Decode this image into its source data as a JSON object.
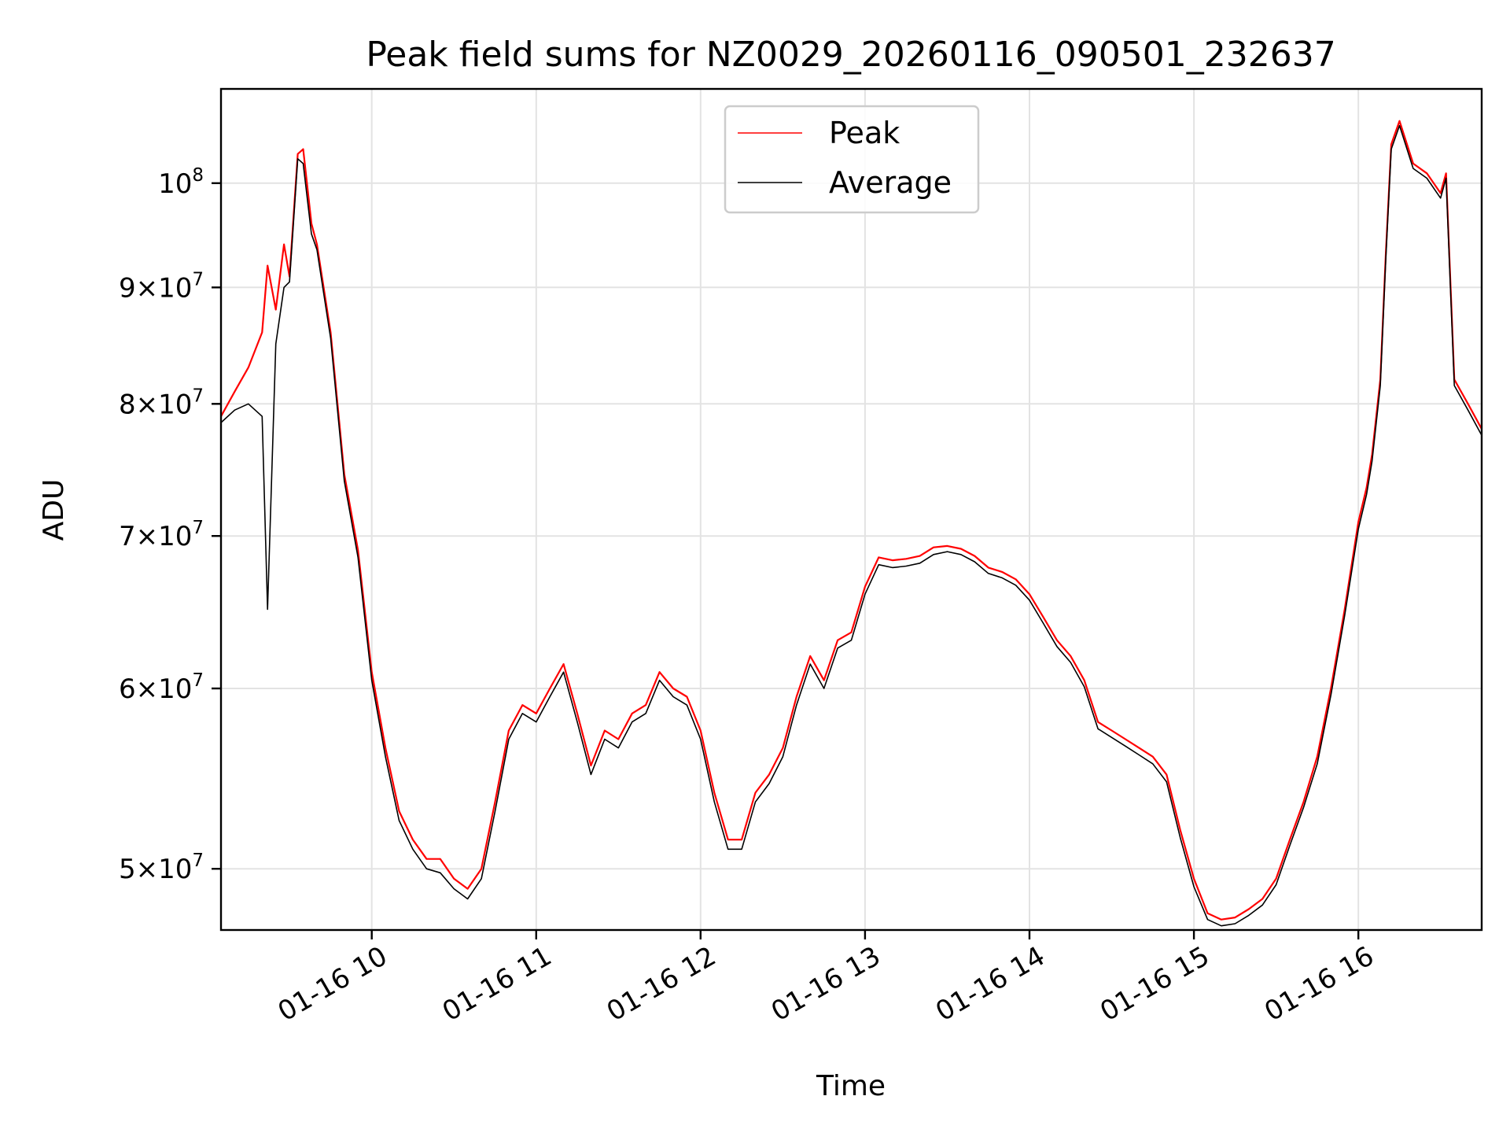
{
  "chart_data": {
    "type": "line",
    "title": "Peak field sums for NZ0029_20260116_090501_232637",
    "xlabel": "Time",
    "ylabel": "ADU",
    "x_scale": "time",
    "y_scale": "log",
    "xlim": [
      "2026-01-16 09:05",
      "2026-01-16 16:45"
    ],
    "ylim": [
      47000000,
      110000000
    ],
    "grid": true,
    "legend_position": "top-center",
    "x_ticks": [
      {
        "label": "01-16 10",
        "value": "2026-01-16 10:00"
      },
      {
        "label": "01-16 11",
        "value": "2026-01-16 11:00"
      },
      {
        "label": "01-16 12",
        "value": "2026-01-16 12:00"
      },
      {
        "label": "01-16 13",
        "value": "2026-01-16 13:00"
      },
      {
        "label": "01-16 14",
        "value": "2026-01-16 14:00"
      },
      {
        "label": "01-16 15",
        "value": "2026-01-16 15:00"
      },
      {
        "label": "01-16 16",
        "value": "2026-01-16 16:00"
      }
    ],
    "y_ticks": [
      {
        "mantissa": "5",
        "base": "10",
        "exp": "7",
        "value": 50000000
      },
      {
        "mantissa": "6",
        "base": "10",
        "exp": "7",
        "value": 60000000
      },
      {
        "mantissa": "7",
        "base": "10",
        "exp": "7",
        "value": 70000000
      },
      {
        "mantissa": "8",
        "base": "10",
        "exp": "7",
        "value": 80000000
      },
      {
        "mantissa": "9",
        "base": "10",
        "exp": "7",
        "value": 90000000
      },
      {
        "mantissa": "",
        "base": "10",
        "exp": "8",
        "value": 100000000
      }
    ],
    "series": [
      {
        "name": "Peak",
        "color": "#ff0000",
        "x": [
          "2026-01-16 09:05",
          "2026-01-16 09:10",
          "2026-01-16 09:15",
          "2026-01-16 09:20",
          "2026-01-16 09:22",
          "2026-01-16 09:25",
          "2026-01-16 09:28",
          "2026-01-16 09:30",
          "2026-01-16 09:33",
          "2026-01-16 09:35",
          "2026-01-16 09:38",
          "2026-01-16 09:40",
          "2026-01-16 09:45",
          "2026-01-16 09:50",
          "2026-01-16 09:55",
          "2026-01-16 10:00",
          "2026-01-16 10:05",
          "2026-01-16 10:10",
          "2026-01-16 10:15",
          "2026-01-16 10:20",
          "2026-01-16 10:25",
          "2026-01-16 10:30",
          "2026-01-16 10:35",
          "2026-01-16 10:40",
          "2026-01-16 10:45",
          "2026-01-16 10:50",
          "2026-01-16 10:55",
          "2026-01-16 11:00",
          "2026-01-16 11:05",
          "2026-01-16 11:10",
          "2026-01-16 11:15",
          "2026-01-16 11:20",
          "2026-01-16 11:25",
          "2026-01-16 11:30",
          "2026-01-16 11:35",
          "2026-01-16 11:40",
          "2026-01-16 11:45",
          "2026-01-16 11:50",
          "2026-01-16 11:55",
          "2026-01-16 12:00",
          "2026-01-16 12:05",
          "2026-01-16 12:10",
          "2026-01-16 12:15",
          "2026-01-16 12:20",
          "2026-01-16 12:25",
          "2026-01-16 12:30",
          "2026-01-16 12:35",
          "2026-01-16 12:40",
          "2026-01-16 12:45",
          "2026-01-16 12:50",
          "2026-01-16 12:55",
          "2026-01-16 13:00",
          "2026-01-16 13:05",
          "2026-01-16 13:10",
          "2026-01-16 13:15",
          "2026-01-16 13:20",
          "2026-01-16 13:25",
          "2026-01-16 13:30",
          "2026-01-16 13:35",
          "2026-01-16 13:40",
          "2026-01-16 13:45",
          "2026-01-16 13:50",
          "2026-01-16 13:55",
          "2026-01-16 14:00",
          "2026-01-16 14:05",
          "2026-01-16 14:10",
          "2026-01-16 14:15",
          "2026-01-16 14:20",
          "2026-01-16 14:25",
          "2026-01-16 14:30",
          "2026-01-16 14:35",
          "2026-01-16 14:40",
          "2026-01-16 14:45",
          "2026-01-16 14:50",
          "2026-01-16 14:55",
          "2026-01-16 15:00",
          "2026-01-16 15:05",
          "2026-01-16 15:10",
          "2026-01-16 15:15",
          "2026-01-16 15:20",
          "2026-01-16 15:25",
          "2026-01-16 15:30",
          "2026-01-16 15:35",
          "2026-01-16 15:40",
          "2026-01-16 15:45",
          "2026-01-16 15:50",
          "2026-01-16 15:55",
          "2026-01-16 16:00",
          "2026-01-16 16:03",
          "2026-01-16 16:05",
          "2026-01-16 16:08",
          "2026-01-16 16:10",
          "2026-01-16 16:12",
          "2026-01-16 16:15",
          "2026-01-16 16:20",
          "2026-01-16 16:25",
          "2026-01-16 16:30",
          "2026-01-16 16:32",
          "2026-01-16 16:35",
          "2026-01-16 16:40",
          "2026-01-16 16:45"
        ],
        "values": [
          79000000,
          81000000,
          83000000,
          86000000,
          92000000,
          88000000,
          94000000,
          91000000,
          103000000,
          103500000,
          96000000,
          94000000,
          86000000,
          74500000,
          69000000,
          61000000,
          56500000,
          53000000,
          51500000,
          50500000,
          50500000,
          49500000,
          49000000,
          50000000,
          53500000,
          57500000,
          59000000,
          58500000,
          60000000,
          61500000,
          58500000,
          55500000,
          57500000,
          57000000,
          58500000,
          59000000,
          61000000,
          60000000,
          59500000,
          57500000,
          54000000,
          51500000,
          51500000,
          54000000,
          55000000,
          56500000,
          59500000,
          62000000,
          60500000,
          63000000,
          63500000,
          66500000,
          68500000,
          68300000,
          68400000,
          68600000,
          69200000,
          69300000,
          69100000,
          68600000,
          67800000,
          67500000,
          67000000,
          66000000,
          64500000,
          63000000,
          62000000,
          60500000,
          58000000,
          57500000,
          57000000,
          56500000,
          56000000,
          55000000,
          52000000,
          49500000,
          47800000,
          47500000,
          47600000,
          48000000,
          48500000,
          49500000,
          51500000,
          53500000,
          56000000,
          60000000,
          65000000,
          71000000,
          73500000,
          76000000,
          82000000,
          93000000,
          104000000,
          106500000,
          102000000,
          101000000,
          99000000,
          101000000,
          82000000,
          80000000,
          78000000
        ]
      },
      {
        "name": "Average",
        "color": "#000000",
        "x": [
          "2026-01-16 09:05",
          "2026-01-16 09:10",
          "2026-01-16 09:15",
          "2026-01-16 09:20",
          "2026-01-16 09:22",
          "2026-01-16 09:25",
          "2026-01-16 09:28",
          "2026-01-16 09:30",
          "2026-01-16 09:33",
          "2026-01-16 09:35",
          "2026-01-16 09:38",
          "2026-01-16 09:40",
          "2026-01-16 09:45",
          "2026-01-16 09:50",
          "2026-01-16 09:55",
          "2026-01-16 10:00",
          "2026-01-16 10:05",
          "2026-01-16 10:10",
          "2026-01-16 10:15",
          "2026-01-16 10:20",
          "2026-01-16 10:25",
          "2026-01-16 10:30",
          "2026-01-16 10:35",
          "2026-01-16 10:40",
          "2026-01-16 10:45",
          "2026-01-16 10:50",
          "2026-01-16 10:55",
          "2026-01-16 11:00",
          "2026-01-16 11:05",
          "2026-01-16 11:10",
          "2026-01-16 11:15",
          "2026-01-16 11:20",
          "2026-01-16 11:25",
          "2026-01-16 11:30",
          "2026-01-16 11:35",
          "2026-01-16 11:40",
          "2026-01-16 11:45",
          "2026-01-16 11:50",
          "2026-01-16 11:55",
          "2026-01-16 12:00",
          "2026-01-16 12:05",
          "2026-01-16 12:10",
          "2026-01-16 12:15",
          "2026-01-16 12:20",
          "2026-01-16 12:25",
          "2026-01-16 12:30",
          "2026-01-16 12:35",
          "2026-01-16 12:40",
          "2026-01-16 12:45",
          "2026-01-16 12:50",
          "2026-01-16 12:55",
          "2026-01-16 13:00",
          "2026-01-16 13:05",
          "2026-01-16 13:10",
          "2026-01-16 13:15",
          "2026-01-16 13:20",
          "2026-01-16 13:25",
          "2026-01-16 13:30",
          "2026-01-16 13:35",
          "2026-01-16 13:40",
          "2026-01-16 13:45",
          "2026-01-16 13:50",
          "2026-01-16 13:55",
          "2026-01-16 14:00",
          "2026-01-16 14:05",
          "2026-01-16 14:10",
          "2026-01-16 14:15",
          "2026-01-16 14:20",
          "2026-01-16 14:25",
          "2026-01-16 14:30",
          "2026-01-16 14:35",
          "2026-01-16 14:40",
          "2026-01-16 14:45",
          "2026-01-16 14:50",
          "2026-01-16 14:55",
          "2026-01-16 15:00",
          "2026-01-16 15:05",
          "2026-01-16 15:10",
          "2026-01-16 15:15",
          "2026-01-16 15:20",
          "2026-01-16 15:25",
          "2026-01-16 15:30",
          "2026-01-16 15:35",
          "2026-01-16 15:40",
          "2026-01-16 15:45",
          "2026-01-16 15:50",
          "2026-01-16 15:55",
          "2026-01-16 16:00",
          "2026-01-16 16:03",
          "2026-01-16 16:05",
          "2026-01-16 16:08",
          "2026-01-16 16:10",
          "2026-01-16 16:12",
          "2026-01-16 16:15",
          "2026-01-16 16:20",
          "2026-01-16 16:25",
          "2026-01-16 16:30",
          "2026-01-16 16:32",
          "2026-01-16 16:35",
          "2026-01-16 16:40",
          "2026-01-16 16:45"
        ],
        "values": [
          78500000,
          79500000,
          80000000,
          79000000,
          65000000,
          85000000,
          90000000,
          90500000,
          102500000,
          102000000,
          95000000,
          93500000,
          85500000,
          74000000,
          68500000,
          60500000,
          56000000,
          52500000,
          51000000,
          50000000,
          49800000,
          49000000,
          48500000,
          49500000,
          53000000,
          57000000,
          58500000,
          58000000,
          59500000,
          61000000,
          58000000,
          55000000,
          57000000,
          56500000,
          58000000,
          58500000,
          60500000,
          59500000,
          59000000,
          57000000,
          53500000,
          51000000,
          51000000,
          53500000,
          54500000,
          56000000,
          59000000,
          61500000,
          60000000,
          62500000,
          63000000,
          66000000,
          68000000,
          67800000,
          67900000,
          68100000,
          68700000,
          68900000,
          68700000,
          68200000,
          67400000,
          67100000,
          66600000,
          65600000,
          64100000,
          62600000,
          61600000,
          60100000,
          57600000,
          57100000,
          56600000,
          56100000,
          55600000,
          54600000,
          51600000,
          49100000,
          47500000,
          47200000,
          47300000,
          47700000,
          48200000,
          49200000,
          51200000,
          53200000,
          55600000,
          59600000,
          64600000,
          70500000,
          73000000,
          75500000,
          81500000,
          92500000,
          103500000,
          106000000,
          101500000,
          100500000,
          98500000,
          100500000,
          81500000,
          79500000,
          77500000
        ]
      }
    ]
  }
}
